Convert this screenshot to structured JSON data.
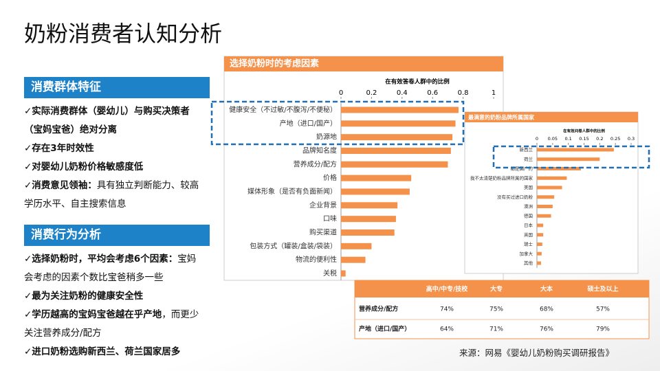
{
  "header": {
    "title": "奶粉消费者认知分析"
  },
  "sections": [
    {
      "heading": "消费群体特征",
      "items": [
        {
          "bold": "✓实际消费群体（婴幼儿）与购买决策者（宝妈宝爸）绝对分离"
        },
        {
          "bold": "✓存在3年时效性"
        },
        {
          "bold": "✓对婴幼儿奶粉价格敏感度低"
        },
        {
          "bold": "✓消费意见领袖：",
          "text": "具有独立判断能力、较高学历水平、自主搜索信息"
        }
      ]
    },
    {
      "heading": "消费行为分析",
      "items": [
        {
          "bold": "✓选择奶粉时，平均会考虑6个因素：",
          "text": "宝妈会考虑的因素个数比宝爸稍多一些"
        },
        {
          "bold": "✓最为关注奶粉的健康安全性"
        },
        {
          "bold": "✓学历越高的宝妈宝爸越在乎产地",
          "text": "，而更少关注营养成分/配方"
        },
        {
          "bold": "✓进口奶粉选购新西兰、荷兰国家居多"
        }
      ]
    }
  ],
  "chart_data": [
    {
      "type": "barh",
      "title": "选择奶粉时的考虑因素",
      "x_label": "在有效答卷人群中的比例",
      "color": "#f4914a",
      "categories": [
        "健康安全（不过敏/不腹泻/不便秘）",
        "产地（进口/国产）",
        "奶源地",
        "品牌知名度",
        "营养成分/配方",
        "价格",
        "媒体形象（是否有负面新闻）",
        "企业背景",
        "口味",
        "购买渠道",
        "包装方式（罐装/盒装/袋装）",
        "物流的便利性",
        "关税"
      ],
      "values": [
        0.77,
        0.75,
        0.73,
        0.72,
        0.7,
        0.46,
        0.45,
        0.37,
        0.36,
        0.35,
        0.2,
        0.16,
        0.03
      ],
      "xlim": [
        0,
        1
      ],
      "xticks": [
        0,
        0.2,
        0.4,
        0.6,
        0.8,
        1
      ]
    },
    {
      "type": "barh",
      "title": "最满意的奶粉品牌所属国家",
      "x_label": "在有效问卷人群中的比例",
      "color": "#f4914a",
      "categories": [
        "新西兰",
        "荷兰",
        "都是国产的",
        "我不太清楚奶粉品牌所属的国家",
        "美国",
        "没有买过进口奶粉",
        "澳洲",
        "德国",
        "日本",
        "英国",
        "瑞士",
        "加拿大",
        "其他"
      ],
      "values": [
        0.245,
        0.2,
        0.14,
        0.095,
        0.08,
        0.055,
        0.05,
        0.045,
        0.02,
        0.02,
        0.017,
        0.015,
        0.013
      ],
      "xlim": [
        0,
        0.3
      ],
      "xticks": [
        0,
        0.05,
        0.1,
        0.15,
        0.2,
        0.25,
        0.3
      ]
    }
  ],
  "table": {
    "header": [
      "高中/中专/技校",
      "大专",
      "大本",
      "硕士及以上"
    ],
    "rows": [
      [
        "营养成分/配方",
        "74%",
        "75%",
        "68%",
        "57%"
      ],
      [
        "产地（进口/国产）",
        "64%",
        "71%",
        "76%",
        "79%"
      ]
    ]
  },
  "source": "来源：网易《婴幼儿奶粉购买调研报告》"
}
